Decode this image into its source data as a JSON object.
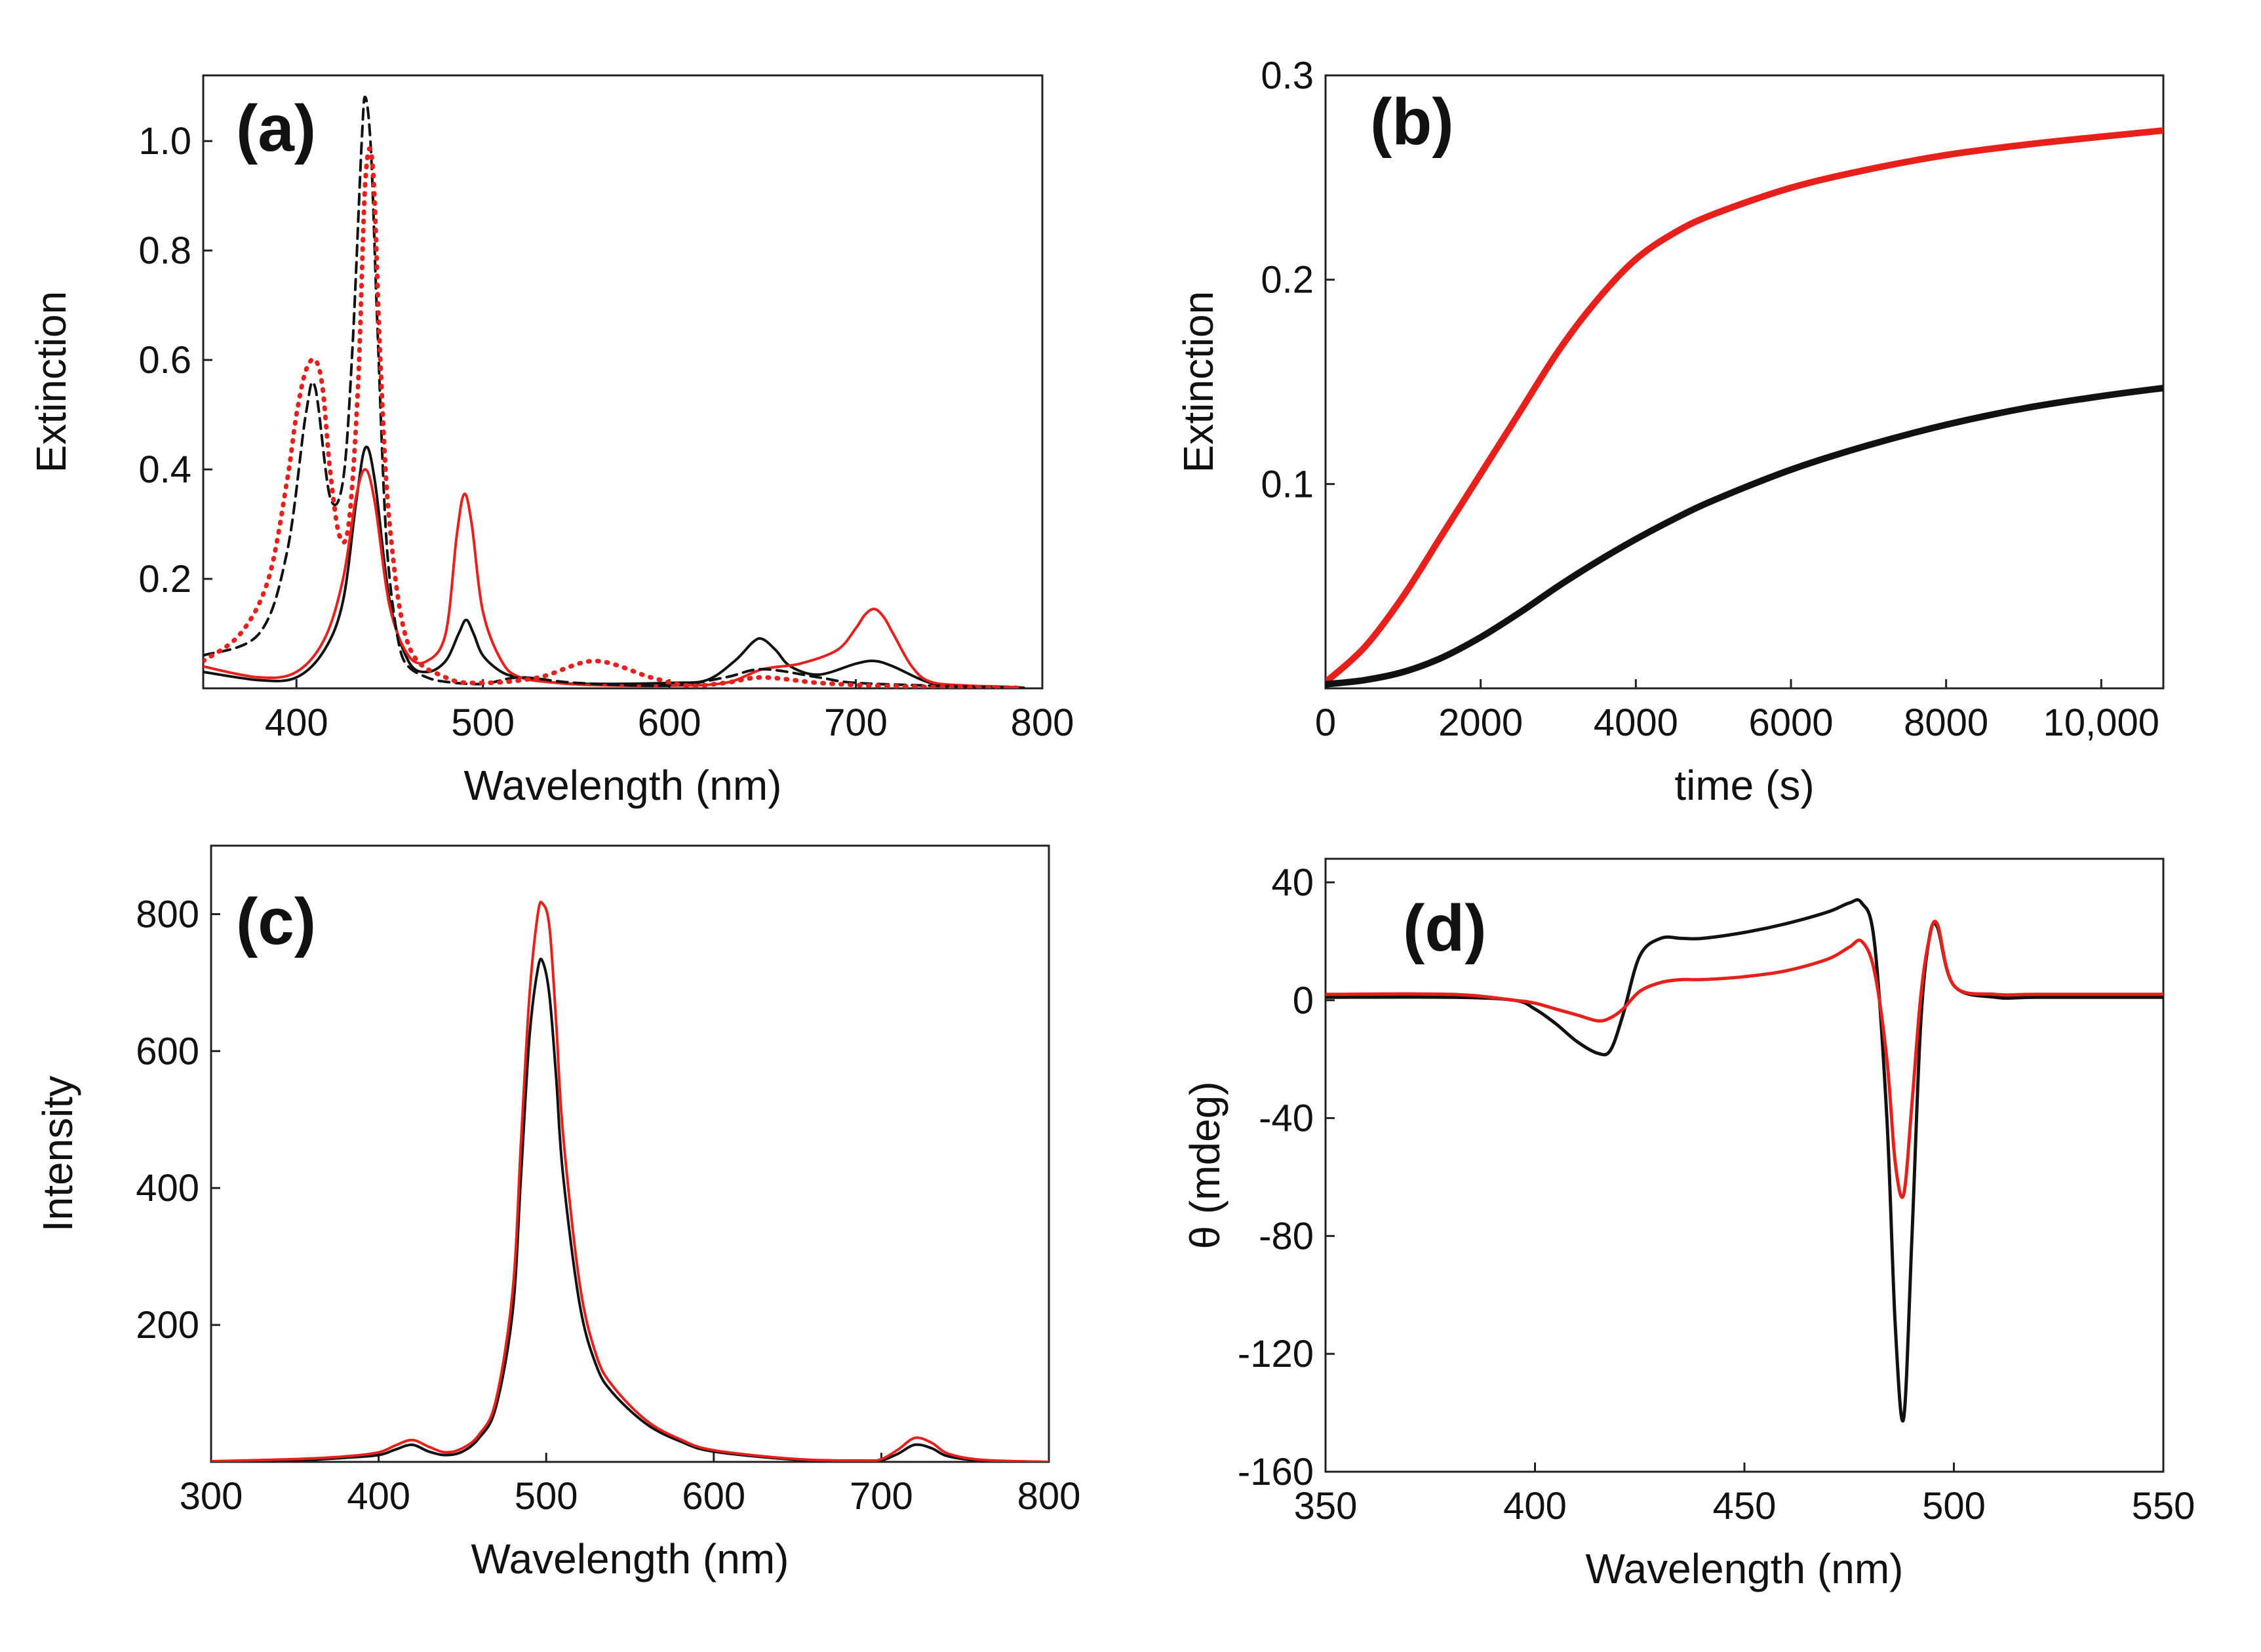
{
  "figure": {
    "colors": {
      "black": "#111111",
      "red": "#e8201c"
    },
    "panels": [
      {
        "id": "a",
        "label": "(a)",
        "xlabel": "Wavelength (nm)",
        "ylabel": "Extinction",
        "xlim": [
          350,
          800
        ],
        "ylim": [
          0,
          1.12
        ],
        "xticks": [
          400,
          500,
          600,
          700,
          800
        ],
        "xtick_labels": [
          "400",
          "500",
          "600",
          "700",
          "800"
        ],
        "yticks": [
          0.2,
          0.4,
          0.6,
          0.8,
          1.0
        ],
        "ytick_labels": [
          "0.2",
          "0.4",
          "0.6",
          "0.8",
          "1.0"
        ],
        "chart_data": {
          "type": "line",
          "series": [
            {
              "name": "black-solid",
              "color": "black",
              "dash": "solid",
              "width": 4,
              "x": [
                350,
                380,
                400,
                415,
                425,
                432,
                437,
                442,
                450,
                460,
                470,
                480,
                487,
                491,
                495,
                500,
                510,
                520,
                540,
                560,
                600,
                620,
                635,
                645,
                650,
                657,
                665,
                680,
                700,
                710,
                720,
                740,
                760,
                780,
                790
              ],
              "y": [
                0.03,
                0.015,
                0.02,
                0.07,
                0.16,
                0.34,
                0.44,
                0.38,
                0.16,
                0.05,
                0.03,
                0.05,
                0.1,
                0.125,
                0.1,
                0.06,
                0.03,
                0.02,
                0.01,
                0.008,
                0.01,
                0.015,
                0.05,
                0.085,
                0.09,
                0.07,
                0.04,
                0.025,
                0.045,
                0.05,
                0.04,
                0.01,
                0.004,
                0.002,
                0.001
              ]
            },
            {
              "name": "red-solid",
              "color": "red",
              "dash": "solid",
              "width": 4,
              "x": [
                350,
                380,
                400,
                415,
                425,
                432,
                437,
                442,
                450,
                460,
                470,
                480,
                486,
                490,
                494,
                500,
                510,
                520,
                540,
                560,
                600,
                630,
                650,
                670,
                690,
                700,
                705,
                710,
                715,
                720,
                730,
                740,
                760,
                780,
                790
              ],
              "y": [
                0.04,
                0.02,
                0.03,
                0.09,
                0.2,
                0.35,
                0.4,
                0.34,
                0.15,
                0.06,
                0.05,
                0.1,
                0.28,
                0.355,
                0.3,
                0.14,
                0.05,
                0.02,
                0.01,
                0.006,
                0.005,
                0.01,
                0.035,
                0.045,
                0.07,
                0.11,
                0.135,
                0.145,
                0.13,
                0.1,
                0.04,
                0.012,
                0.005,
                0.003,
                0.001
              ]
            },
            {
              "name": "black-dashed",
              "color": "black",
              "dash": "dashed",
              "width": 4,
              "x": [
                350,
                380,
                395,
                405,
                410,
                418,
                425,
                430,
                435,
                437,
                440,
                443,
                447,
                450,
                455,
                460,
                470,
                480,
                500,
                520,
                550,
                600,
                630,
                650,
                680,
                700,
                750,
                790
              ],
              "y": [
                0.06,
                0.1,
                0.25,
                0.5,
                0.55,
                0.35,
                0.38,
                0.62,
                1.0,
                1.08,
                0.98,
                0.7,
                0.35,
                0.2,
                0.08,
                0.04,
                0.02,
                0.012,
                0.008,
                0.02,
                0.01,
                0.005,
                0.02,
                0.035,
                0.02,
                0.01,
                0.004,
                0.001
              ]
            },
            {
              "name": "red-dotted",
              "color": "red",
              "dash": "dotted",
              "width": 7,
              "x": [
                350,
                370,
                385,
                395,
                400,
                405,
                410,
                414,
                418,
                423,
                428,
                433,
                437,
                441,
                445,
                450,
                460,
                480,
                500,
                530,
                560,
                590,
                610,
                630,
                650,
                680,
                710,
                750,
                790
              ],
              "y": [
                0.05,
                0.1,
                0.2,
                0.38,
                0.5,
                0.58,
                0.6,
                0.55,
                0.4,
                0.28,
                0.3,
                0.55,
                0.93,
                0.95,
                0.6,
                0.3,
                0.08,
                0.02,
                0.01,
                0.02,
                0.05,
                0.02,
                0.005,
                0.01,
                0.02,
                0.01,
                0.005,
                0.002,
                0.001
              ]
            }
          ]
        }
      },
      {
        "id": "b",
        "label": "(b)",
        "xlabel": "time (s)",
        "ylabel": "Extinction",
        "xlim": [
          0,
          10800
        ],
        "ylim": [
          0,
          0.3
        ],
        "xticks": [
          0,
          2000,
          4000,
          6000,
          8000,
          10000
        ],
        "xtick_labels": [
          "0",
          "2000",
          "4000",
          "6000",
          "8000",
          "10,000"
        ],
        "yticks": [
          0.1,
          0.2,
          0.3
        ],
        "ytick_labels": [
          "0.1",
          "0.2",
          "0.3"
        ],
        "chart_data": {
          "type": "line",
          "series": [
            {
              "name": "red-kinetics",
              "color": "red",
              "dash": "solid",
              "width": 10,
              "x": [
                0,
                500,
                1000,
                1500,
                2000,
                2500,
                3000,
                3500,
                4000,
                4500,
                5000,
                6000,
                7000,
                8000,
                9000,
                10000,
                10800
              ],
              "y": [
                0.003,
                0.02,
                0.045,
                0.075,
                0.105,
                0.135,
                0.165,
                0.19,
                0.21,
                0.223,
                0.232,
                0.245,
                0.254,
                0.261,
                0.266,
                0.27,
                0.273
              ]
            },
            {
              "name": "black-kinetics",
              "color": "black",
              "dash": "solid",
              "width": 10,
              "x": [
                0,
                500,
                1000,
                1500,
                2000,
                2500,
                3000,
                3500,
                4000,
                4500,
                5000,
                6000,
                7000,
                8000,
                9000,
                10000,
                10800
              ],
              "y": [
                0.002,
                0.004,
                0.008,
                0.015,
                0.025,
                0.037,
                0.05,
                0.062,
                0.073,
                0.083,
                0.092,
                0.107,
                0.119,
                0.129,
                0.137,
                0.143,
                0.147
              ]
            }
          ]
        }
      },
      {
        "id": "c",
        "label": "(c)",
        "xlabel": "Wavelength (nm)",
        "ylabel": "Intensity",
        "xlim": [
          300,
          800
        ],
        "ylim": [
          0,
          900
        ],
        "xticks": [
          300,
          400,
          500,
          600,
          700,
          800
        ],
        "xtick_labels": [
          "300",
          "400",
          "500",
          "600",
          "700",
          "800"
        ],
        "yticks": [
          200,
          400,
          600,
          800
        ],
        "ytick_labels": [
          "200",
          "400",
          "600",
          "800"
        ],
        "chart_data": {
          "type": "line",
          "series": [
            {
              "name": "black-emission",
              "color": "black",
              "dash": "solid",
              "width": 4,
              "x": [
                300,
                350,
                380,
                400,
                410,
                420,
                430,
                440,
                450,
                460,
                470,
                480,
                485,
                490,
                495,
                498,
                502,
                506,
                510,
                520,
                530,
                540,
                560,
                580,
                600,
                650,
                690,
                700,
                710,
                720,
                730,
                740,
                760,
                800
              ],
              "y": [
                0,
                2,
                6,
                10,
                18,
                25,
                15,
                10,
                15,
                35,
                80,
                220,
                420,
                620,
                720,
                730,
                680,
                560,
                420,
                230,
                140,
                100,
                55,
                30,
                15,
                3,
                1,
                2,
                12,
                25,
                20,
                8,
                2,
                0
              ]
            },
            {
              "name": "red-emission",
              "color": "red",
              "dash": "solid",
              "width": 4,
              "x": [
                300,
                350,
                380,
                400,
                410,
                420,
                430,
                440,
                450,
                460,
                470,
                480,
                485,
                490,
                495,
                498,
                502,
                506,
                510,
                520,
                530,
                540,
                560,
                580,
                600,
                650,
                690,
                700,
                710,
                720,
                730,
                740,
                760,
                800
              ],
              "y": [
                1,
                4,
                8,
                14,
                24,
                32,
                22,
                14,
                20,
                40,
                90,
                250,
                470,
                680,
                800,
                815,
                780,
                640,
                480,
                260,
                155,
                110,
                60,
                33,
                17,
                4,
                2,
                4,
                18,
                35,
                28,
                12,
                3,
                0
              ]
            }
          ]
        }
      },
      {
        "id": "d",
        "label": "(d)",
        "xlabel": "Wavelength (nm)",
        "ylabel": "θ (mdeg)",
        "xlim": [
          350,
          550
        ],
        "ylim": [
          -160,
          48
        ],
        "xticks": [
          350,
          400,
          450,
          500,
          550
        ],
        "xtick_labels": [
          "350",
          "400",
          "450",
          "500",
          "550"
        ],
        "yticks": [
          40,
          0,
          -40,
          -80,
          -120,
          -160
        ],
        "ytick_labels": [
          "40",
          "0",
          "-40",
          "-80",
          "-120",
          "-160"
        ],
        "chart_data": {
          "type": "line",
          "series": [
            {
              "name": "black-cd",
              "color": "black",
              "dash": "solid",
              "width": 5,
              "x": [
                350,
                380,
                395,
                400,
                405,
                410,
                415,
                418,
                421,
                425,
                430,
                435,
                440,
                450,
                460,
                470,
                475,
                478,
                481,
                484,
                486,
                488,
                490,
                492,
                494,
                496,
                500,
                510,
                520,
                550
              ],
              "y": [
                1,
                1,
                0,
                -3,
                -8,
                -14,
                -18,
                -17,
                -5,
                15,
                21,
                21,
                21,
                23,
                26,
                30,
                33,
                33,
                20,
                -40,
                -110,
                -142,
                -80,
                -10,
                20,
                25,
                5,
                1,
                1,
                1
              ]
            },
            {
              "name": "red-cd",
              "color": "red",
              "dash": "solid",
              "width": 5,
              "x": [
                350,
                380,
                395,
                400,
                405,
                410,
                415,
                418,
                421,
                425,
                430,
                435,
                440,
                450,
                460,
                470,
                475,
                478,
                481,
                484,
                486,
                488,
                490,
                492,
                494,
                496,
                500,
                510,
                520,
                550
              ],
              "y": [
                2,
                2,
                0,
                -1,
                -3,
                -5,
                -7,
                -6,
                -3,
                3,
                6,
                7,
                7,
                8,
                10,
                14,
                18,
                20,
                10,
                -20,
                -55,
                -66,
                -35,
                0,
                20,
                26,
                5,
                2,
                2,
                2
              ]
            }
          ]
        }
      }
    ]
  }
}
